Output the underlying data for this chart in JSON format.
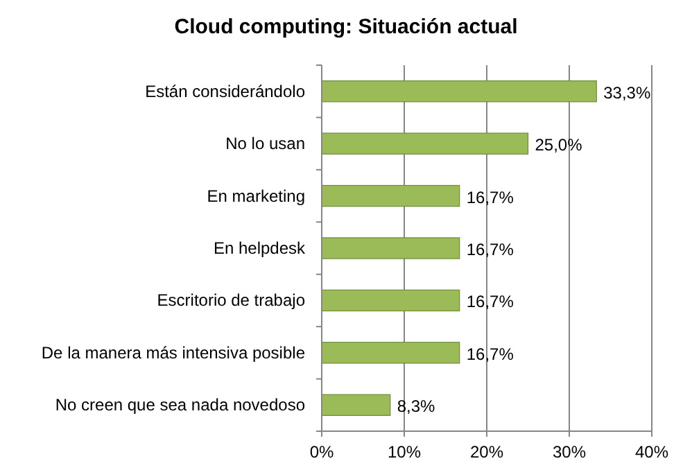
{
  "chart_data": {
    "type": "bar",
    "orientation": "horizontal",
    "title": "Cloud computing: Situación actual",
    "categories": [
      "Están considerándolo",
      "No lo usan",
      "En marketing",
      "En helpdesk",
      "Escritorio de trabajo",
      "De la manera más intensiva posible",
      "No creen que sea nada novedoso"
    ],
    "values": [
      33.3,
      25.0,
      16.7,
      16.7,
      16.7,
      16.7,
      8.3
    ],
    "value_labels": [
      "33,3%",
      "25,0%",
      "16,7%",
      "16,7%",
      "16,7%",
      "16,7%",
      "8,3%"
    ],
    "color": "#9bbb59",
    "xlim": [
      0,
      40
    ],
    "xticks": [
      {
        "value": 0,
        "label": "0%"
      },
      {
        "value": 10,
        "label": "10%"
      },
      {
        "value": 20,
        "label": "20%"
      },
      {
        "value": 30,
        "label": "30%"
      },
      {
        "value": 40,
        "label": "40%"
      }
    ],
    "grid": "x"
  }
}
